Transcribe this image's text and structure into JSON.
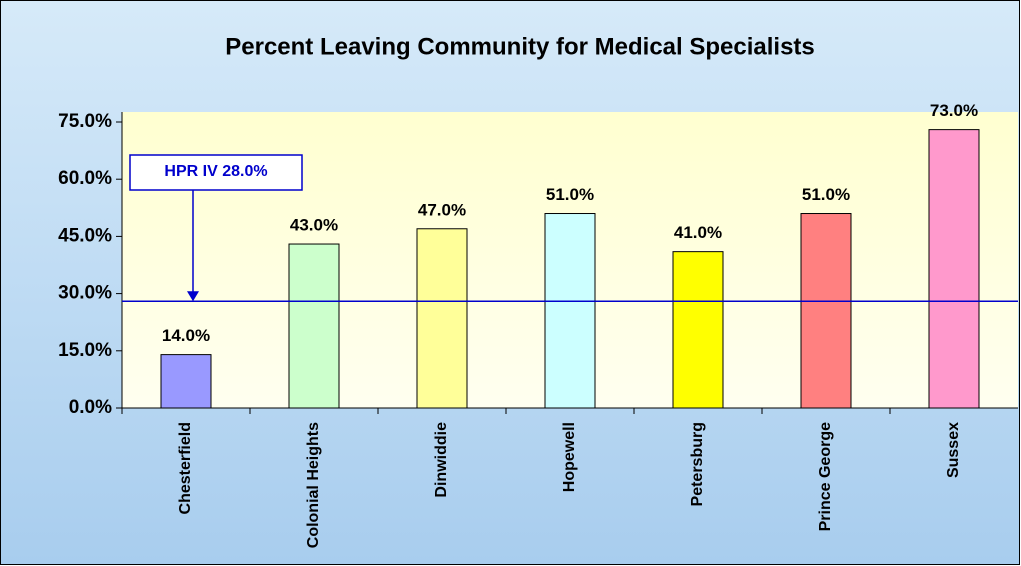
{
  "chart_data": {
    "type": "bar",
    "title": "Percent Leaving Community for Medical Specialists",
    "categories": [
      "Chesterfield",
      "Colonial Heights",
      "Dinwiddie",
      "Hopewell",
      "Petersburg",
      "Prince George",
      "Sussex"
    ],
    "values": [
      14,
      43,
      47,
      51,
      41,
      51,
      73
    ],
    "value_labels": [
      "14.0%",
      "43.0%",
      "47.0%",
      "51.0%",
      "41.0%",
      "51.0%",
      "73.0%"
    ],
    "colors": [
      "#9999ff",
      "#ccffcc",
      "#ffff99",
      "#ccffff",
      "#ffff00",
      "#ff8080",
      "#ff99cc"
    ],
    "ylim": [
      0,
      75
    ],
    "yticks": [
      {
        "value": 0,
        "label": "0.0%"
      },
      {
        "value": 15,
        "label": "15.0%"
      },
      {
        "value": 30,
        "label": "30.0%"
      },
      {
        "value": 45,
        "label": "45.0%"
      },
      {
        "value": 60,
        "label": "60.0%"
      },
      {
        "value": 75,
        "label": "75.0%"
      }
    ],
    "reference_line": {
      "value": 28,
      "label": "HPR IV 28.0%",
      "color": "#0000cc"
    }
  }
}
